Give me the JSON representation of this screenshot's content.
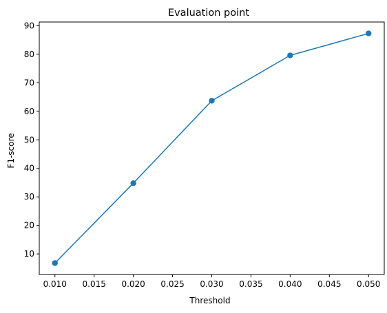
{
  "chart_data": {
    "type": "line",
    "title": "Evaluation point",
    "xlabel": "Threshold",
    "ylabel": "F1-score",
    "x": [
      0.01,
      0.02,
      0.03,
      0.04,
      0.05
    ],
    "series": [
      {
        "values": [
          6.8,
          34.8,
          63.7,
          79.6,
          87.3
        ],
        "color": "#1f77b4",
        "marker": "circle"
      }
    ],
    "xticks": [
      "0.010",
      "0.015",
      "0.020",
      "0.025",
      "0.030",
      "0.035",
      "0.040",
      "0.045",
      "0.050"
    ],
    "yticks": [
      "10",
      "20",
      "30",
      "40",
      "50",
      "60",
      "70",
      "80",
      "90"
    ],
    "xlim": [
      0.008,
      0.052
    ],
    "ylim": [
      2.8,
      91.3
    ],
    "grid": false,
    "legend": "none"
  }
}
